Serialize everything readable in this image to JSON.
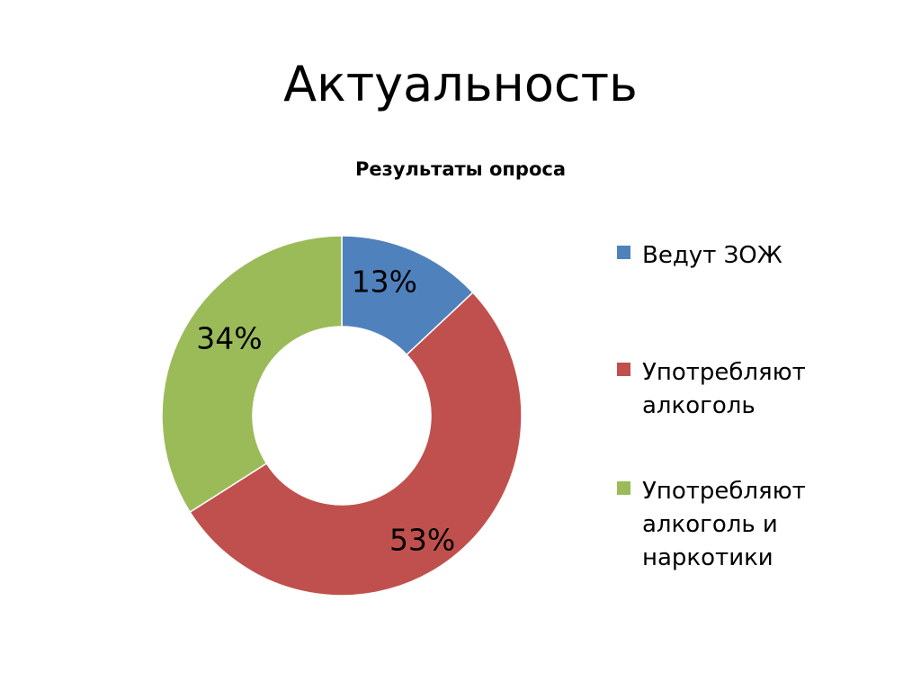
{
  "slide": {
    "title": "Актуальность"
  },
  "chart_data": {
    "type": "pie",
    "variant": "doughnut",
    "title": "Результаты опроса",
    "categories": [
      "Ведут ЗОЖ",
      "Употребляют алкоголь",
      "Употребляют алкоголь и наркотики"
    ],
    "values": [
      13,
      53,
      34
    ],
    "labels": [
      "13%",
      "53%",
      "34%"
    ],
    "colors": [
      "#4F81BD",
      "#C0504D",
      "#9BBB59"
    ],
    "legend_position": "right"
  }
}
